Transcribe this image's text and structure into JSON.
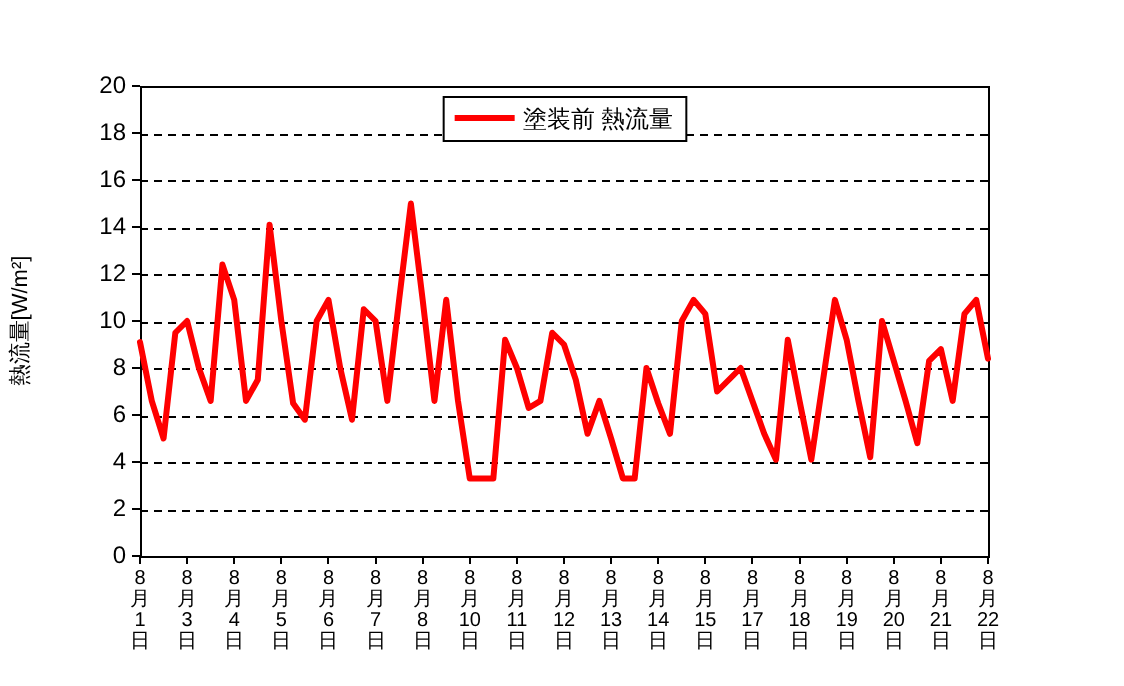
{
  "chart_data": {
    "type": "line",
    "ylabel": "熱流量[W/m²]",
    "categories": [
      "8月1日",
      null,
      null,
      null,
      "8月3日",
      null,
      null,
      null,
      "8月4日",
      null,
      null,
      null,
      "8月5日",
      null,
      null,
      null,
      "8月6日",
      null,
      null,
      null,
      "8月7日",
      null,
      null,
      null,
      "8月8日",
      null,
      null,
      null,
      "8月10日",
      null,
      null,
      null,
      "8月11日",
      null,
      null,
      null,
      "8月12日",
      null,
      null,
      null,
      "8月13日",
      null,
      null,
      null,
      "8月14日",
      null,
      null,
      null,
      "8月15日",
      null,
      null,
      null,
      "8月17日",
      null,
      null,
      null,
      "8月18日",
      null,
      null,
      null,
      "8月19日",
      null,
      null,
      null,
      "8月20日",
      null,
      null,
      null,
      "8月21日",
      null,
      null,
      null,
      "8月22日"
    ],
    "series": [
      {
        "name": "塗装前 熱流量",
        "color": "#ff0000",
        "values": [
          9.1,
          6.6,
          5.0,
          9.5,
          10.0,
          8.0,
          6.6,
          12.4,
          10.9,
          6.6,
          7.5,
          14.1,
          10.0,
          6.5,
          5.8,
          10.0,
          10.9,
          8.0,
          5.8,
          10.5,
          10.0,
          6.6,
          10.9,
          15.0,
          10.9,
          6.6,
          10.9,
          6.6,
          3.3,
          3.3,
          3.3,
          9.2,
          8.0,
          6.3,
          6.6,
          9.5,
          9.0,
          7.5,
          5.2,
          6.6,
          5.0,
          3.3,
          3.3,
          8.0,
          6.5,
          5.2,
          10.0,
          10.9,
          10.3,
          7.0,
          7.5,
          8.0,
          6.6,
          5.2,
          4.1,
          9.2,
          6.6,
          4.1,
          7.5,
          10.9,
          9.2,
          6.6,
          4.2,
          10.0,
          8.3,
          6.6,
          4.8,
          8.3,
          8.8,
          6.6,
          10.3,
          10.9,
          8.4
        ]
      }
    ],
    "ylim": [
      0,
      20
    ],
    "yticks": [
      0,
      2,
      4,
      6,
      8,
      10,
      12,
      14,
      16,
      18,
      20
    ],
    "grid": "y",
    "legend": "top",
    "marker": "none",
    "line_style": "solid"
  }
}
